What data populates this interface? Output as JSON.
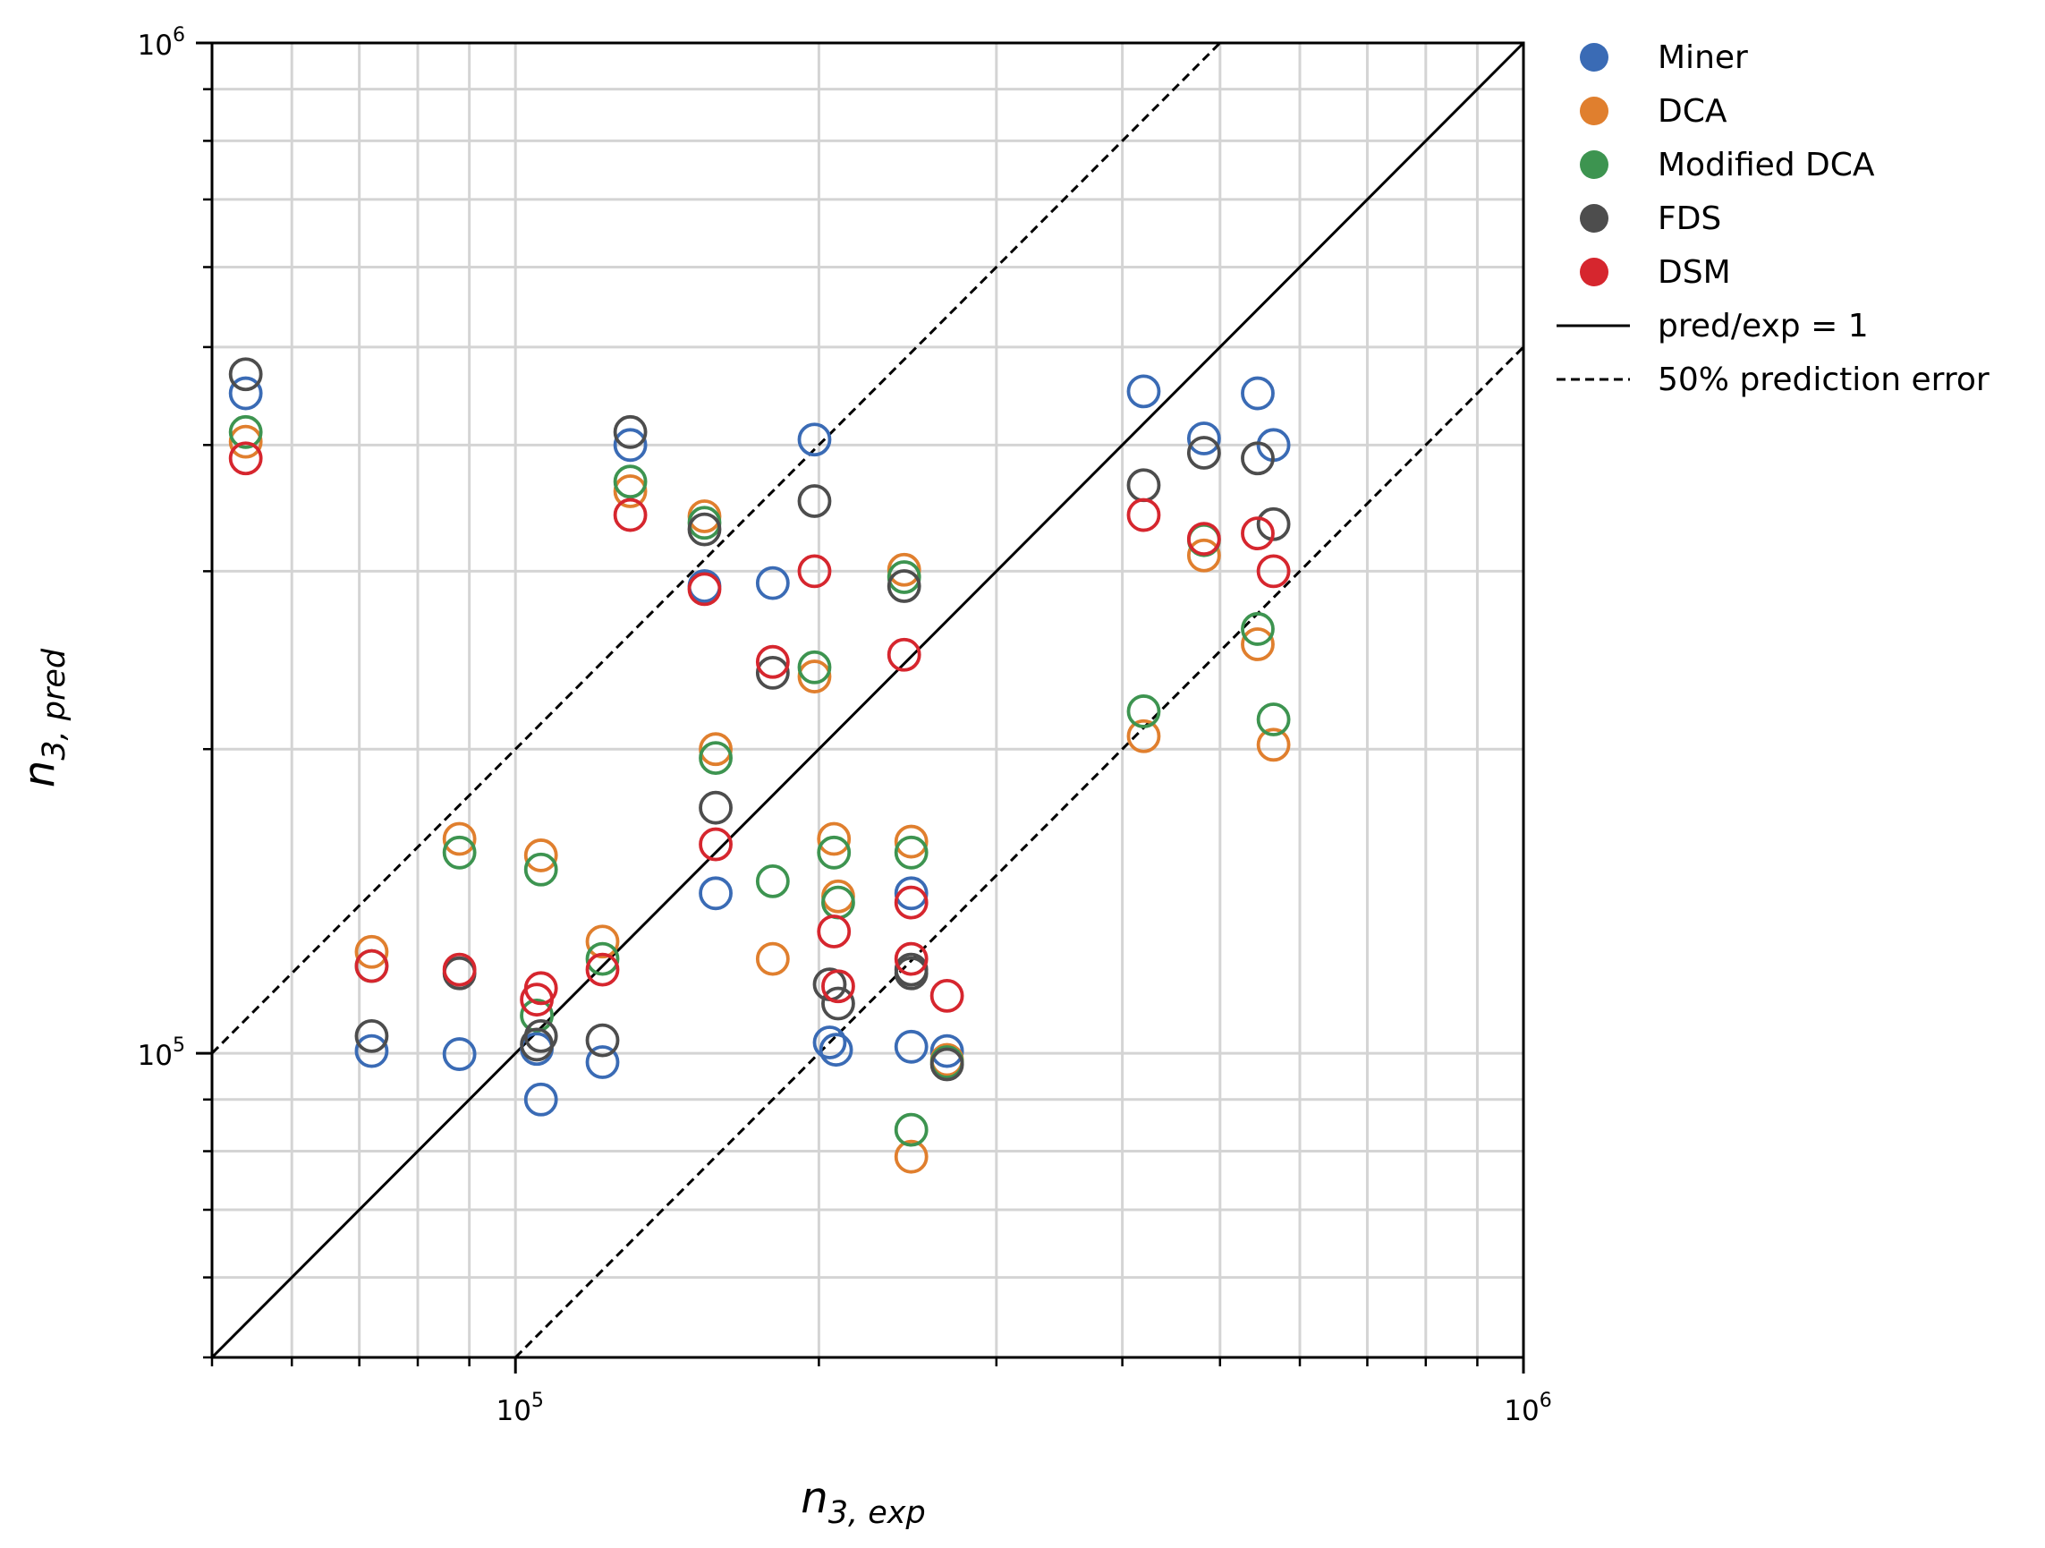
{
  "chart_data": {
    "type": "scatter",
    "xscale": "log",
    "yscale": "log",
    "xlim": [
      50000,
      1000000
    ],
    "ylim": [
      50000,
      1000000
    ],
    "xlabel_base": "n",
    "xlabel_sub": "3, exp",
    "ylabel_base": "n",
    "ylabel_sub": "3, pred",
    "grid": true,
    "legend_position": "outside-top-right",
    "x_ticks": [
      {
        "value": 100000,
        "base": "10",
        "exp": "5"
      },
      {
        "value": 1000000,
        "base": "10",
        "exp": "6"
      }
    ],
    "y_ticks": [
      {
        "value": 100000,
        "base": "10",
        "exp": "5"
      },
      {
        "value": 1000000,
        "base": "10",
        "exp": "6"
      }
    ],
    "reference_lines": [
      {
        "name": "pred/exp = 1",
        "factor": 1,
        "style": "solid"
      },
      {
        "name": "50% prediction error",
        "factor": 2,
        "style": "dashed"
      },
      {
        "name": "50% prediction error",
        "factor": 0.5,
        "style": "dashed"
      }
    ],
    "series": [
      {
        "name": "Miner",
        "color": "#3a6bb5",
        "points": [
          [
            54000,
            450000
          ],
          [
            72000,
            100500
          ],
          [
            88000,
            99800
          ],
          [
            105000,
            101000
          ],
          [
            106000,
            90000
          ],
          [
            122000,
            98000
          ],
          [
            130000,
            400000
          ],
          [
            154000,
            290000
          ],
          [
            158000,
            144000
          ],
          [
            180000,
            292000
          ],
          [
            198000,
            405000
          ],
          [
            205000,
            102500
          ],
          [
            208000,
            100800
          ],
          [
            247000,
            144000
          ],
          [
            247000,
            101500
          ],
          [
            268000,
            100500
          ],
          [
            420000,
            452000
          ],
          [
            482000,
            406000
          ],
          [
            545000,
            450000
          ],
          [
            565000,
            400000
          ]
        ]
      },
      {
        "name": "DCA",
        "color": "#e07f2e",
        "points": [
          [
            54000,
            403000
          ],
          [
            72000,
            126000
          ],
          [
            88000,
            163000
          ],
          [
            106000,
            157000
          ],
          [
            122000,
            129000
          ],
          [
            130000,
            360000
          ],
          [
            154000,
            340000
          ],
          [
            158000,
            200000
          ],
          [
            180000,
            124000
          ],
          [
            198000,
            236000
          ],
          [
            207000,
            163000
          ],
          [
            209000,
            143000
          ],
          [
            243000,
            301000
          ],
          [
            247000,
            162000
          ],
          [
            247000,
            79000
          ],
          [
            268000,
            98500
          ],
          [
            420000,
            206000
          ],
          [
            482000,
            311000
          ],
          [
            545000,
            254000
          ],
          [
            565000,
            202000
          ]
        ]
      },
      {
        "name": "Modified DCA",
        "color": "#3d9450",
        "points": [
          [
            54000,
            412000
          ],
          [
            72000,
            122000
          ],
          [
            88000,
            158000
          ],
          [
            105000,
            109000
          ],
          [
            106000,
            152000
          ],
          [
            122000,
            124000
          ],
          [
            130000,
            368000
          ],
          [
            154000,
            335000
          ],
          [
            158000,
            196000
          ],
          [
            180000,
            148000
          ],
          [
            198000,
            241000
          ],
          [
            207000,
            158000
          ],
          [
            209000,
            141000
          ],
          [
            243000,
            296000
          ],
          [
            247000,
            158000
          ],
          [
            247000,
            84000
          ],
          [
            268000,
            98000
          ],
          [
            420000,
            218000
          ],
          [
            482000,
            322000
          ],
          [
            545000,
            263000
          ],
          [
            565000,
            214000
          ]
        ]
      },
      {
        "name": "FDS",
        "color": "#4d4d4d",
        "points": [
          [
            54000,
            470000
          ],
          [
            72000,
            104000
          ],
          [
            88000,
            120000
          ],
          [
            105000,
            102000
          ],
          [
            106000,
            104000
          ],
          [
            122000,
            103000
          ],
          [
            130000,
            412000
          ],
          [
            154000,
            330000
          ],
          [
            158000,
            175000
          ],
          [
            180000,
            238000
          ],
          [
            198000,
            352000
          ],
          [
            205000,
            117000
          ],
          [
            209000,
            112000
          ],
          [
            243000,
            290000
          ],
          [
            247000,
            120000
          ],
          [
            247000,
            121000
          ],
          [
            268000,
            97500
          ],
          [
            420000,
            365000
          ],
          [
            482000,
            393000
          ],
          [
            545000,
            388000
          ],
          [
            565000,
            334000
          ]
        ]
      },
      {
        "name": "DSM",
        "color": "#d6262e",
        "points": [
          [
            54000,
            388000
          ],
          [
            72000,
            122000
          ],
          [
            88000,
            121000
          ],
          [
            105000,
            113000
          ],
          [
            106000,
            116000
          ],
          [
            122000,
            121000
          ],
          [
            130000,
            341000
          ],
          [
            154000,
            288000
          ],
          [
            158000,
            161000
          ],
          [
            180000,
            244000
          ],
          [
            198000,
            300000
          ],
          [
            207000,
            132000
          ],
          [
            209000,
            116500
          ],
          [
            243000,
            248000
          ],
          [
            247000,
            141000
          ],
          [
            247000,
            124000
          ],
          [
            268000,
            114000
          ],
          [
            420000,
            341000
          ],
          [
            482000,
            323000
          ],
          [
            545000,
            327000
          ],
          [
            565000,
            300000
          ]
        ]
      }
    ]
  }
}
